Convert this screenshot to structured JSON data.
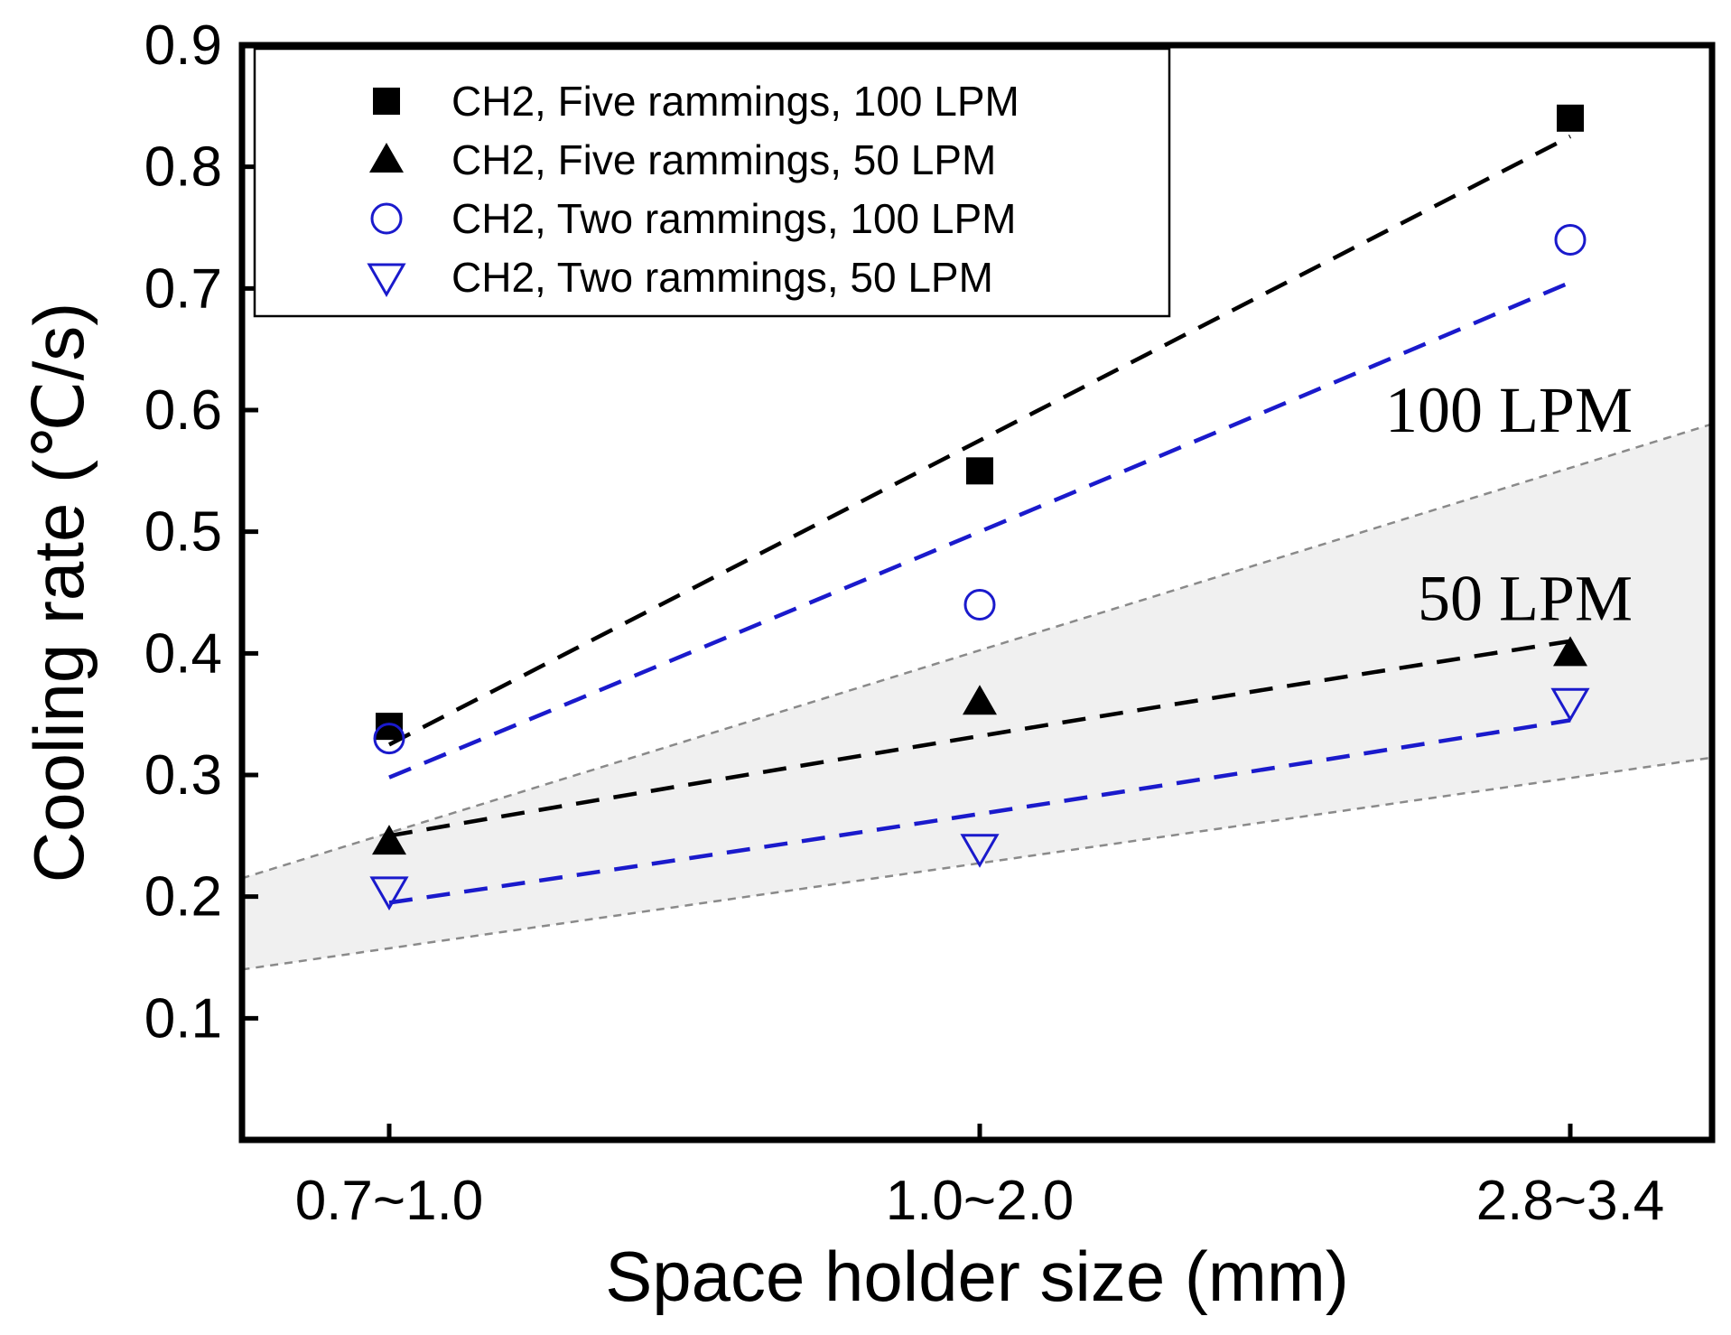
{
  "chart_data": {
    "type": "scatter",
    "title": "",
    "xlabel": "Space holder size (mm)",
    "ylabel": "Cooling rate (℃/s)",
    "categories": [
      "0.7~1.0",
      "1.0~2.0",
      "2.8~3.4"
    ],
    "ylim": [
      0.0,
      0.9
    ],
    "yticks": [
      0.1,
      0.2,
      0.3,
      0.4,
      0.5,
      0.6,
      0.7,
      0.8,
      0.9
    ],
    "ytick_labels": [
      "0.1",
      "0.2",
      "0.3",
      "0.4",
      "0.5",
      "0.6",
      "0.7",
      "0.8",
      "0.9"
    ],
    "grid": false,
    "legend_position": "top-left",
    "series": [
      {
        "name": "CH2, Five rammings, 100 LPM",
        "marker": "filled-square",
        "color": "#000000",
        "values": [
          0.34,
          0.55,
          0.84
        ],
        "trend": [
          0.325,
          0.575,
          0.825
        ],
        "trend_color": "#000000"
      },
      {
        "name": "CH2, Five rammings, 50 LPM",
        "marker": "filled-triangle-up",
        "color": "#000000",
        "values": [
          0.245,
          0.36,
          0.4
        ],
        "trend": [
          0.25,
          0.332,
          0.41
        ],
        "trend_color": "#000000"
      },
      {
        "name": "CH2, Two rammings, 100 LPM",
        "marker": "open-circle",
        "color": "#1a1acc",
        "values": [
          0.33,
          0.44,
          0.74
        ],
        "trend": [
          0.298,
          0.5,
          0.705
        ],
        "trend_color": "#1a1acc"
      },
      {
        "name": "CH2, Two rammings, 50 LPM",
        "marker": "open-triangle-down",
        "color": "#1a1acc",
        "values": [
          0.205,
          0.24,
          0.36
        ],
        "trend": [
          0.195,
          0.268,
          0.345
        ],
        "trend_color": "#1a1acc"
      }
    ],
    "band": {
      "upper": [
        [
          -0.25,
          0.215
        ],
        [
          2.25,
          0.59
        ]
      ],
      "lower": [
        [
          -0.25,
          0.14
        ],
        [
          2.25,
          0.315
        ]
      ],
      "fill": "#f0f0f0",
      "edge_color": "#8a8a8a"
    },
    "annotations": [
      {
        "text": "100 LPM",
        "x": 2.1,
        "y": 0.6
      },
      {
        "text": "50 LPM",
        "x": 2.1,
        "y": 0.445
      }
    ]
  }
}
